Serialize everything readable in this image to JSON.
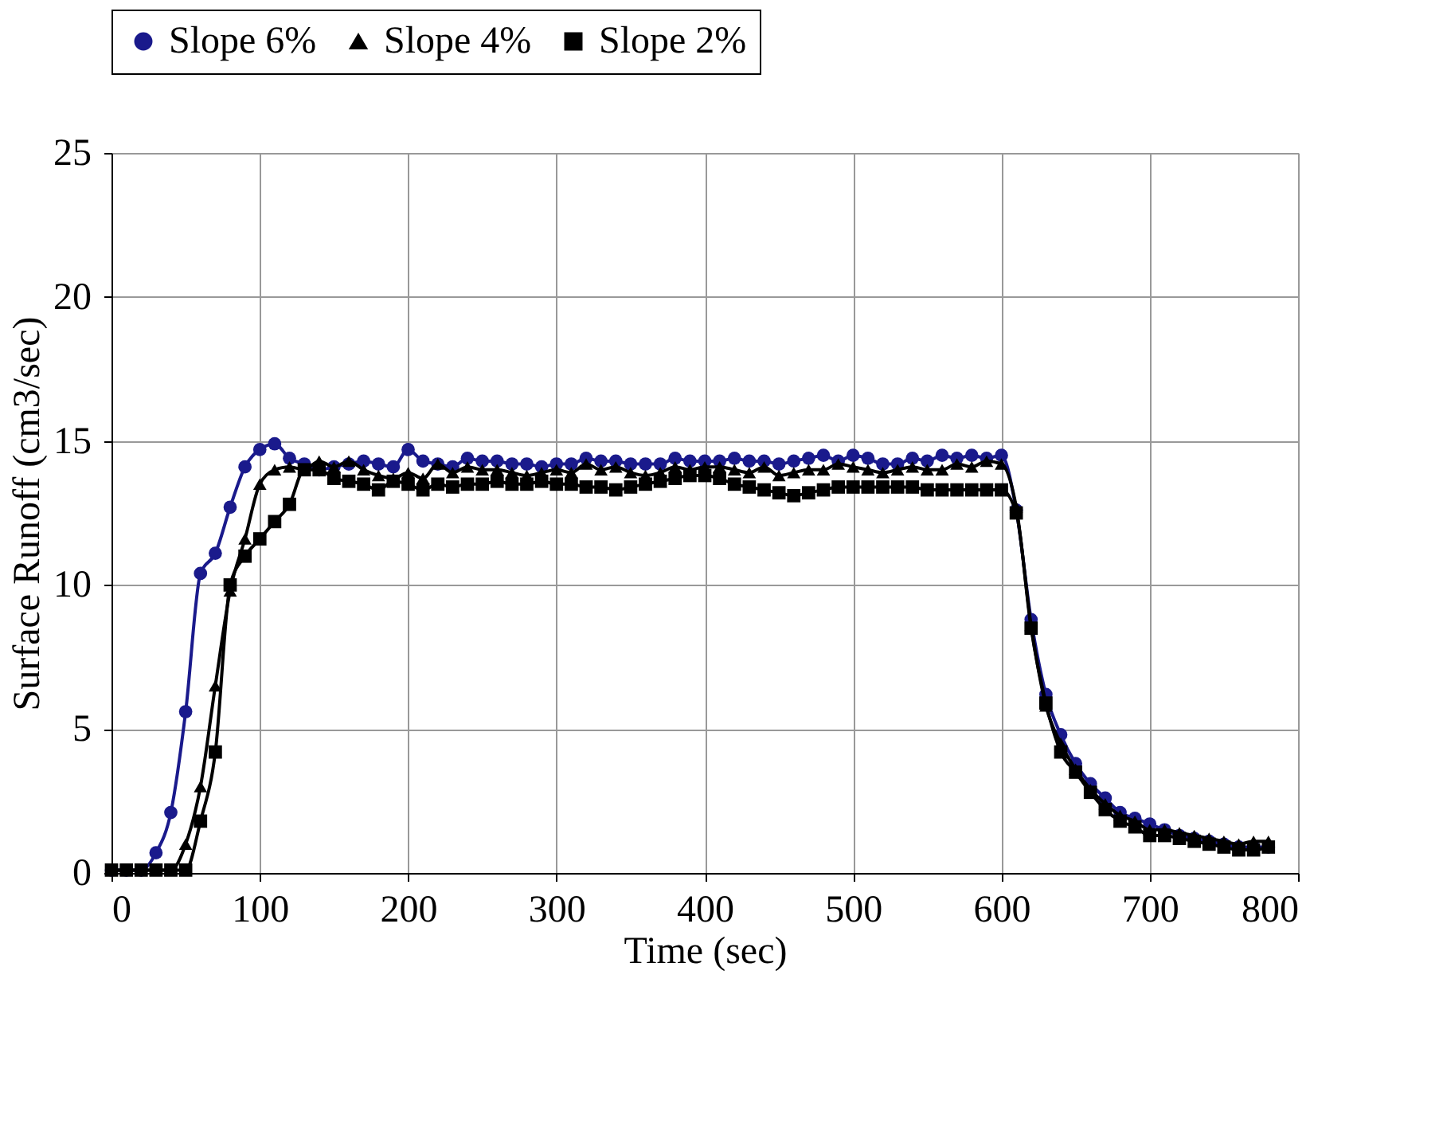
{
  "chart_data": {
    "type": "line",
    "xlabel": "Time (sec)",
    "ylabel": "Surface Runoff (cm3/sec)",
    "x": [
      0,
      10,
      20,
      30,
      40,
      50,
      60,
      70,
      80,
      90,
      100,
      110,
      120,
      130,
      140,
      150,
      160,
      170,
      180,
      190,
      200,
      210,
      220,
      230,
      240,
      250,
      260,
      270,
      280,
      290,
      300,
      310,
      320,
      330,
      340,
      350,
      360,
      370,
      380,
      390,
      400,
      410,
      420,
      430,
      440,
      450,
      460,
      470,
      480,
      490,
      500,
      510,
      520,
      530,
      540,
      550,
      560,
      570,
      580,
      590,
      600,
      610,
      620,
      630,
      640,
      650,
      660,
      670,
      680,
      690,
      700,
      710,
      720,
      730,
      740,
      750,
      760,
      770,
      780
    ],
    "series": [
      {
        "name": "Slope 6%",
        "color": "#1a1a8c",
        "marker": "circle",
        "values": [
          0.1,
          0.1,
          0.1,
          0.7,
          2.1,
          5.6,
          10.4,
          11.1,
          12.7,
          14.1,
          14.7,
          14.9,
          14.4,
          14.2,
          14.0,
          14.1,
          14.2,
          14.3,
          14.2,
          14.1,
          14.7,
          14.3,
          14.2,
          14.1,
          14.4,
          14.3,
          14.3,
          14.2,
          14.2,
          14.1,
          14.2,
          14.2,
          14.4,
          14.3,
          14.3,
          14.2,
          14.2,
          14.2,
          14.4,
          14.3,
          14.3,
          14.3,
          14.4,
          14.3,
          14.3,
          14.2,
          14.3,
          14.4,
          14.5,
          14.3,
          14.5,
          14.4,
          14.2,
          14.2,
          14.4,
          14.3,
          14.5,
          14.4,
          14.5,
          14.4,
          14.5,
          12.6,
          8.8,
          6.2,
          4.8,
          3.8,
          3.1,
          2.6,
          2.1,
          1.9,
          1.7,
          1.5,
          1.3,
          1.2,
          1.1,
          1.0,
          0.9,
          0.9,
          0.9
        ]
      },
      {
        "name": "Slope 4%",
        "color": "#000000",
        "marker": "triangle",
        "values": [
          0.1,
          0.1,
          0.1,
          0.1,
          0.1,
          1.0,
          3.0,
          6.5,
          9.8,
          11.6,
          13.5,
          14.0,
          14.1,
          14.0,
          14.3,
          14.1,
          14.3,
          14.0,
          13.8,
          13.7,
          13.9,
          13.7,
          14.2,
          13.9,
          14.1,
          14.0,
          14.0,
          13.9,
          13.8,
          13.9,
          14.0,
          13.9,
          14.2,
          14.0,
          14.1,
          13.9,
          13.8,
          13.9,
          14.1,
          14.0,
          14.1,
          14.1,
          14.0,
          13.9,
          14.1,
          13.8,
          13.9,
          14.0,
          14.0,
          14.2,
          14.1,
          14.0,
          13.9,
          14.0,
          14.1,
          14.0,
          14.0,
          14.2,
          14.1,
          14.3,
          14.2,
          12.7,
          8.6,
          5.8,
          4.5,
          3.6,
          2.9,
          2.4,
          2.0,
          1.8,
          1.5,
          1.5,
          1.4,
          1.3,
          1.2,
          1.1,
          1.0,
          1.1,
          1.1
        ]
      },
      {
        "name": "Slope 2%",
        "color": "#000000",
        "marker": "square",
        "values": [
          0.1,
          0.1,
          0.1,
          0.1,
          0.1,
          0.1,
          1.8,
          4.2,
          10.0,
          11.0,
          11.6,
          12.2,
          12.8,
          14.0,
          14.0,
          13.7,
          13.6,
          13.5,
          13.3,
          13.6,
          13.5,
          13.3,
          13.5,
          13.4,
          13.5,
          13.5,
          13.6,
          13.5,
          13.5,
          13.6,
          13.5,
          13.5,
          13.4,
          13.4,
          13.3,
          13.4,
          13.5,
          13.6,
          13.7,
          13.8,
          13.8,
          13.7,
          13.5,
          13.4,
          13.3,
          13.2,
          13.1,
          13.2,
          13.3,
          13.4,
          13.4,
          13.4,
          13.4,
          13.4,
          13.4,
          13.3,
          13.3,
          13.3,
          13.3,
          13.3,
          13.3,
          12.5,
          8.5,
          5.9,
          4.2,
          3.5,
          2.8,
          2.2,
          1.8,
          1.6,
          1.3,
          1.3,
          1.2,
          1.1,
          1.0,
          0.9,
          0.8,
          0.8,
          0.9
        ]
      }
    ],
    "xlim": [
      0,
      800
    ],
    "xticks": [
      0,
      100,
      200,
      300,
      400,
      500,
      600,
      700,
      800
    ],
    "ylim": [
      0,
      25
    ],
    "yticks": [
      0,
      5,
      10,
      15,
      20,
      25
    ],
    "grid": true,
    "legend": "top",
    "line_style": "solid"
  }
}
